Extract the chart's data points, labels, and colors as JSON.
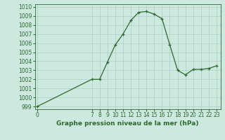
{
  "x": [
    0,
    7,
    8,
    9,
    10,
    11,
    12,
    13,
    14,
    15,
    16,
    17,
    18,
    19,
    20,
    21,
    22,
    23
  ],
  "y": [
    999,
    1002,
    1002,
    1003.9,
    1005.8,
    1007.0,
    1008.5,
    1009.4,
    1009.5,
    1009.2,
    1008.7,
    1005.8,
    1003.0,
    1002.5,
    1003.1,
    1003.1,
    1003.2,
    1003.5
  ],
  "line_color": "#2d6a2d",
  "marker": "+",
  "bg_color": "#cce8df",
  "grid_color": "#aacfc5",
  "ylabel_values": [
    999,
    1000,
    1001,
    1002,
    1003,
    1004,
    1005,
    1006,
    1007,
    1008,
    1009,
    1010
  ],
  "xlabel_values": [
    0,
    7,
    8,
    9,
    10,
    11,
    12,
    13,
    14,
    15,
    16,
    17,
    18,
    19,
    20,
    21,
    22,
    23
  ],
  "ylim": [
    998.7,
    1010.3
  ],
  "xlim": [
    -0.3,
    23.5
  ],
  "xlabel": "Graphe pression niveau de la mer (hPa)",
  "line_color_hex": "#2d6a2d",
  "tick_fontsize": 5.5,
  "xlabel_fontsize": 6.5,
  "linewidth": 0.9,
  "markersize": 3.5
}
